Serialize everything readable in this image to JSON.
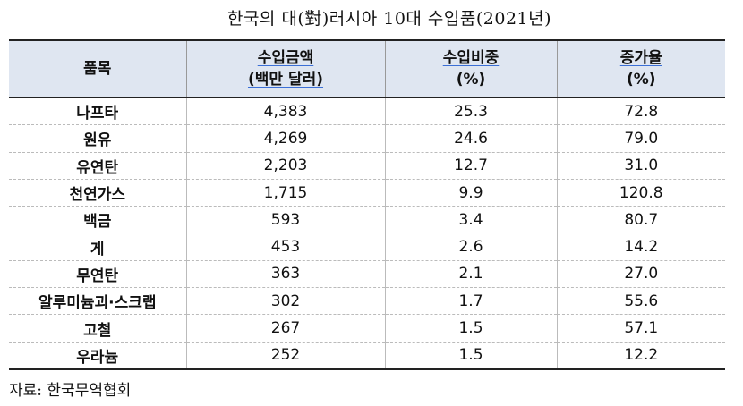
{
  "title": "한국의 대(對)러시아 10대 수입품(2021년)",
  "headers": {
    "item": "품목",
    "amount_line1": "수입금액",
    "amount_line2": "(백만 달러)",
    "share_line1": "수입비중",
    "share_line2": "(%)",
    "growth_line1": "증가율",
    "growth_line2": "(%)"
  },
  "rows": [
    {
      "item": "나프타",
      "amount": "4,383",
      "share": "25.3",
      "growth": "72.8"
    },
    {
      "item": "원유",
      "amount": "4,269",
      "share": "24.6",
      "growth": "79.0"
    },
    {
      "item": "유연탄",
      "amount": "2,203",
      "share": "12.7",
      "growth": "31.0"
    },
    {
      "item": "천연가스",
      "amount": "1,715",
      "share": "9.9",
      "growth": "120.8"
    },
    {
      "item": "백금",
      "amount": "593",
      "share": "3.4",
      "growth": "80.7"
    },
    {
      "item": "게",
      "amount": "453",
      "share": "2.6",
      "growth": "14.2"
    },
    {
      "item": "무연탄",
      "amount": "363",
      "share": "2.1",
      "growth": "27.0"
    },
    {
      "item": "알루미늄괴·스크랩",
      "amount": "302",
      "share": "1.7",
      "growth": "55.6"
    },
    {
      "item": "고철",
      "amount": "267",
      "share": "1.5",
      "growth": "57.1"
    },
    {
      "item": "우라늄",
      "amount": "252",
      "share": "1.5",
      "growth": "12.2"
    }
  ],
  "source": "자료: 한국무역협회"
}
